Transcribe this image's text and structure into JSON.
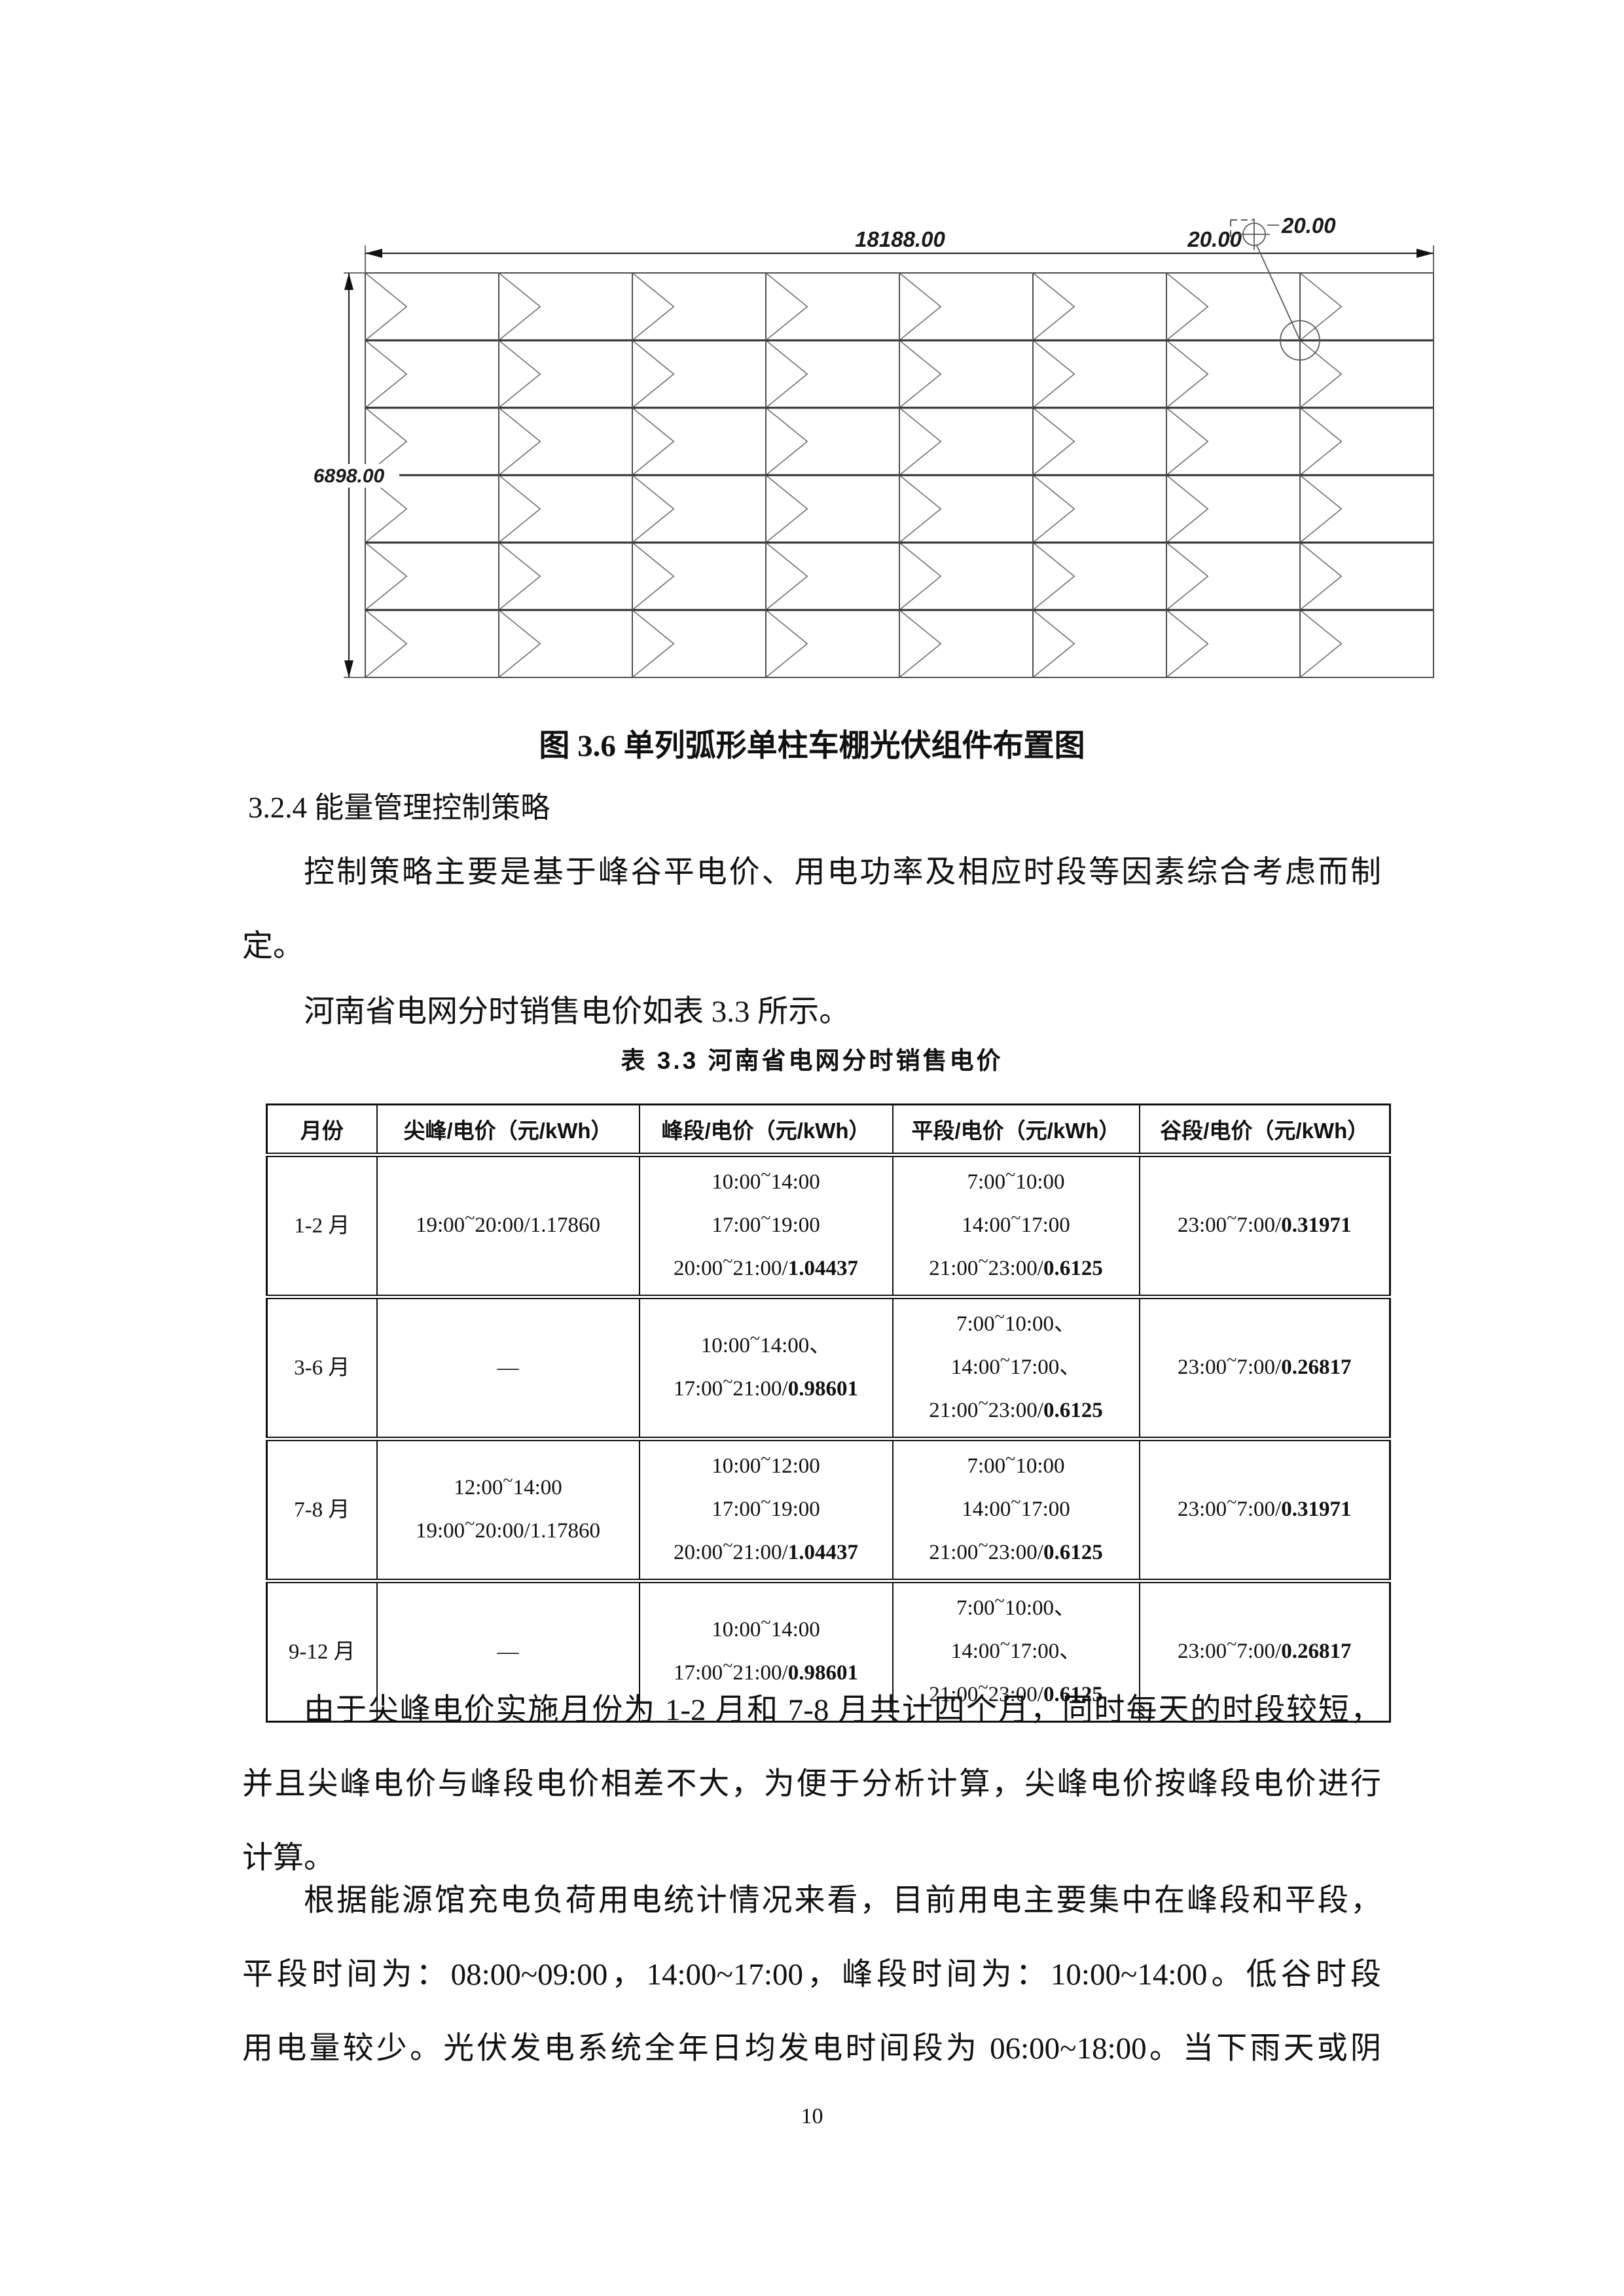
{
  "page": {
    "number": "10"
  },
  "figure": {
    "caption": "图 3.6 单列弧形单柱车棚光伏组件布置图",
    "grid": {
      "rows": 6,
      "cols": 8
    },
    "labels": {
      "width": "18188.00",
      "height": "6898.00",
      "gap_line": "20.00",
      "gap_marker": "20.00"
    }
  },
  "section": {
    "heading": "3.2.4 能量管理控制策略"
  },
  "body": {
    "p1": {
      "lines": [
        {
          "text": "控制策略主要是基于峰谷平电价、用电功率及相应时段等因素综合考虑而制",
          "indent": true,
          "fill": true
        },
        {
          "text": "定。"
        }
      ]
    },
    "p2": {
      "lines": [
        {
          "text": "河南省电网分时销售电价如表 3.3 所示。",
          "indent": true
        }
      ]
    },
    "p3": {
      "lines": [
        {
          "text": "由于尖峰电价实施月份为 1-2 月和 7-8 月共计四个月，同时每天的时段较短，",
          "indent": true,
          "fill": true
        },
        {
          "text": "并且尖峰电价与峰段电价相差不大，为便于分析计算，尖峰电价按峰段电价进行",
          "fill": true
        },
        {
          "text": "计算。"
        }
      ]
    },
    "p4": {
      "lines": [
        {
          "text": "根据能源馆充电负荷用电统计情况来看，目前用电主要集中在峰段和平段，",
          "indent": true,
          "fill": true
        },
        {
          "text": "平段时间为：08:00~09:00，14:00~17:00，峰段时间为：10:00~14:00。低谷时段",
          "fill": true
        },
        {
          "text": "用电量较少。光伏发电系统全年日均发电时间段为 06:00~18:00。当下雨天或阴",
          "fill": true
        }
      ]
    }
  },
  "table": {
    "title": "表 3.3 河南省电网分时销售电价",
    "headers": [
      "月份",
      "尖峰/电价（元/kWh）",
      "峰段/电价（元/kWh）",
      "平段/电价（元/kWh）",
      "谷段/电价（元/kWh）"
    ],
    "rows": [
      {
        "cells": [
          [
            [
              {
                "t": "1-2 月"
              }
            ]
          ],
          [
            [
              {
                "t": "19:00~20:00/1.17860"
              }
            ]
          ],
          [
            [
              {
                "t": "10:00~14:00"
              }
            ],
            [
              {
                "t": "17:00~19:00"
              }
            ],
            [
              {
                "t": "20:00~21:00/"
              },
              {
                "t": "1.04437",
                "b": true
              }
            ]
          ],
          [
            [
              {
                "t": "7:00~10:00"
              }
            ],
            [
              {
                "t": "14:00~17:00"
              }
            ],
            [
              {
                "t": "21:00~23:00/"
              },
              {
                "t": "0.6125",
                "b": true
              }
            ]
          ],
          [
            [
              {
                "t": "23:00~7:00/"
              },
              {
                "t": "0.31971",
                "b": true
              }
            ]
          ]
        ]
      },
      {
        "cells": [
          [
            [
              {
                "t": "3-6 月"
              }
            ]
          ],
          [
            [
              {
                "t": "—"
              }
            ]
          ],
          [
            [
              {
                "t": "10:00~14:00、"
              }
            ],
            [
              {
                "t": "17:00~21:00/"
              },
              {
                "t": "0.98601",
                "b": true
              }
            ]
          ],
          [
            [
              {
                "t": "7:00~10:00、"
              }
            ],
            [
              {
                "t": "14:00~17:00、"
              }
            ],
            [
              {
                "t": "21:00~23:00/"
              },
              {
                "t": "0.6125",
                "b": true
              }
            ]
          ],
          [
            [
              {
                "t": "23:00~7:00/"
              },
              {
                "t": "0.26817",
                "b": true
              }
            ]
          ]
        ]
      },
      {
        "cells": [
          [
            [
              {
                "t": "7-8 月"
              }
            ]
          ],
          [
            [
              {
                "t": "12:00~14:00"
              }
            ],
            [
              {
                "t": "19:00~20:00/1.17860"
              }
            ]
          ],
          [
            [
              {
                "t": "10:00~12:00"
              }
            ],
            [
              {
                "t": "17:00~19:00"
              }
            ],
            [
              {
                "t": "20:00~21:00/"
              },
              {
                "t": "1.04437",
                "b": true
              }
            ]
          ],
          [
            [
              {
                "t": "7:00~10:00"
              }
            ],
            [
              {
                "t": "14:00~17:00"
              }
            ],
            [
              {
                "t": "21:00~23:00/"
              },
              {
                "t": "0.6125",
                "b": true
              }
            ]
          ],
          [
            [
              {
                "t": "23:00~7:00/"
              },
              {
                "t": "0.31971",
                "b": true
              }
            ]
          ]
        ]
      },
      {
        "cells": [
          [
            [
              {
                "t": "9-12 月"
              }
            ]
          ],
          [
            [
              {
                "t": "—"
              }
            ]
          ],
          [
            [
              {
                "t": "10:00~14:00"
              }
            ],
            [
              {
                "t": "17:00~21:00/"
              },
              {
                "t": "0.98601",
                "b": true
              }
            ]
          ],
          [
            [
              {
                "t": "7:00~10:00、"
              }
            ],
            [
              {
                "t": "14:00~17:00、"
              }
            ],
            [
              {
                "t": "21:00~23:00/"
              },
              {
                "t": "0.6125",
                "b": true
              }
            ]
          ],
          [
            [
              {
                "t": "23:00~7:00/"
              },
              {
                "t": "0.26817",
                "b": true
              }
            ]
          ]
        ]
      }
    ]
  }
}
